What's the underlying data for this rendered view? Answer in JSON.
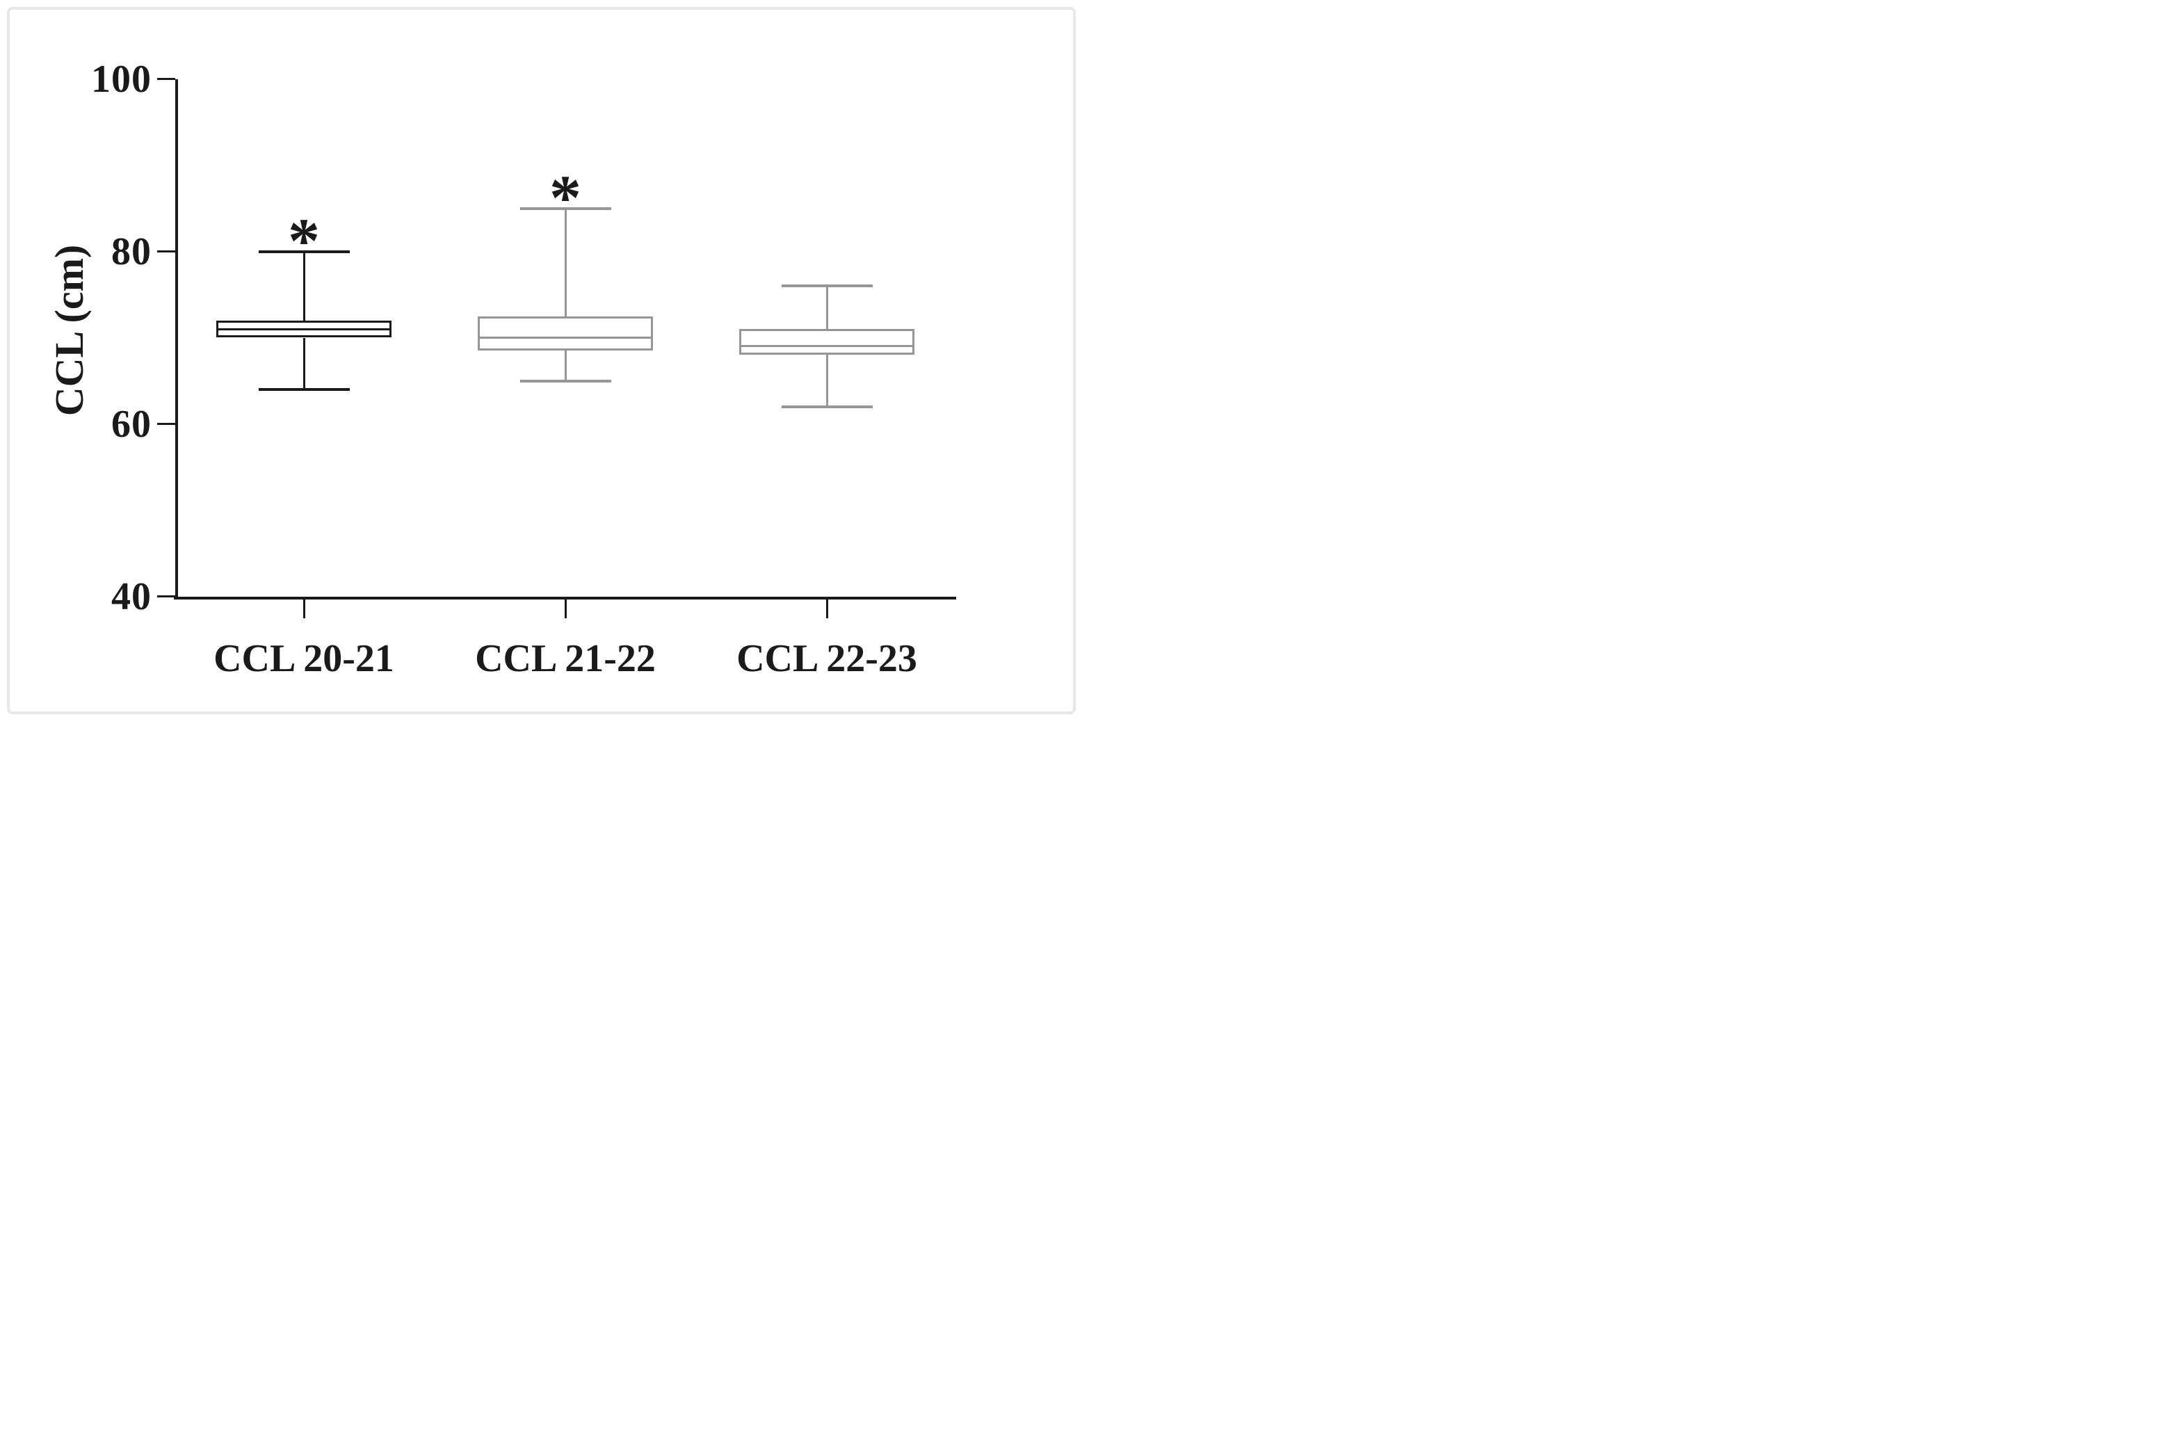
{
  "figure": {
    "background_color": "#ffffff",
    "frame_color": "#e7e7e7",
    "text_color": "#1a1a1a"
  },
  "chart_data": {
    "type": "box",
    "title": "",
    "xlabel": "",
    "ylabel": "CCL (cm)",
    "ylim": [
      40,
      100
    ],
    "yticks": [
      "40",
      "60",
      "80",
      "100"
    ],
    "ytick_values": [
      40,
      60,
      80,
      100
    ],
    "grid": false,
    "legend": null,
    "categories": [
      "CCL 20-21",
      "CCL 21-22",
      "CCL 22-23"
    ],
    "axis_color": "#1a1a1a",
    "series": [
      {
        "label": "CCL 20-21",
        "min": 64,
        "q1": 70,
        "median": 71,
        "q3": 72,
        "max": 80,
        "significance": "*",
        "color": "#1a1a1a"
      },
      {
        "label": "CCL 21-22",
        "min": 65,
        "q1": 68.5,
        "median": 70,
        "q3": 72.5,
        "max": 85,
        "significance": "*",
        "color": "#969696"
      },
      {
        "label": "CCL 22-23",
        "min": 62,
        "q1": 68,
        "median": 69,
        "q3": 71,
        "max": 76,
        "significance": "",
        "color": "#969696"
      }
    ]
  }
}
